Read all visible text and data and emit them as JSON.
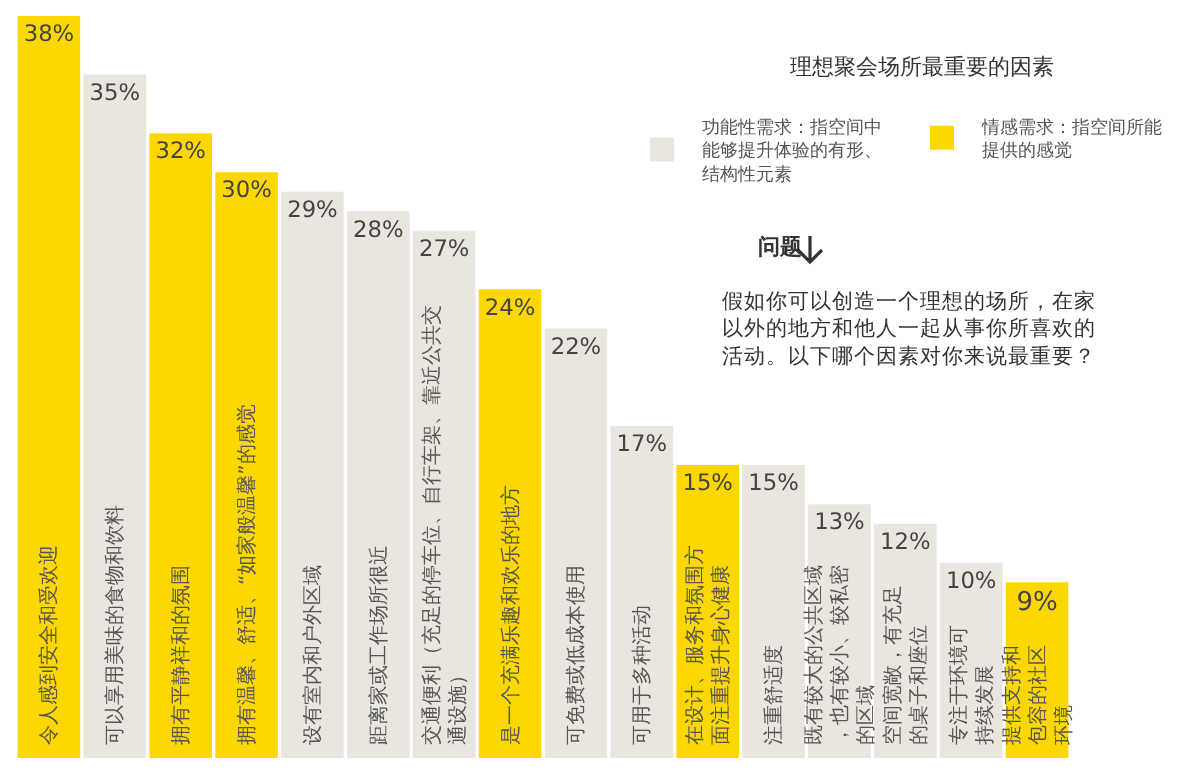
{
  "chart_data": {
    "type": "bar",
    "title": "理想聚会场所最重要的因素",
    "categories": [
      "令人感到安全和受欢迎",
      "可以享用美味的食物和饮料",
      "拥有平静祥和的氛围",
      "拥有温馨、舒适、“如家般温馨”的感觉",
      "设有室内和户外区域",
      "距离家或工作场所很近",
      "交通便利（充足的停车位、自行车架、靠近公共交通设施）",
      "是一个充满乐趣和欢乐的地方",
      "可免费或低成本使用",
      "可用于多种活动",
      "在设计、服务和氛围方面注重提升身心健康",
      "注重舒适度",
      "既有较大的公共区域，也有较小、较私密的区域",
      "空间宽敞，有充足的桌子和座位",
      "专注于环境可持续发展",
      "提供支持和包容的社区环境"
    ],
    "series": [
      {
        "name": "功能性需求：指空间中能够提升体验的有形、结构性元素",
        "color": "#e9e6df",
        "values": [
          null,
          35,
          null,
          null,
          29,
          28,
          27,
          null,
          22,
          17,
          null,
          15,
          13,
          12,
          10,
          null
        ],
        "value_labels": [
          null,
          "35%",
          null,
          null,
          "29%",
          "28%",
          "27%",
          null,
          "22%",
          "17%",
          null,
          "15%",
          "13%",
          "12%",
          "10%",
          null
        ]
      },
      {
        "name": "情感需求：指空间所能提供的感觉",
        "color": "#fcd800",
        "values": [
          38,
          null,
          32,
          30,
          null,
          null,
          null,
          24,
          null,
          null,
          15,
          null,
          null,
          null,
          null,
          9
        ],
        "value_labels": [
          "38%",
          null,
          "32%",
          "30%",
          null,
          null,
          null,
          "24%",
          null,
          null,
          "15%",
          null,
          null,
          null,
          null,
          "9%"
        ]
      }
    ],
    "ylim": [
      0,
      38
    ],
    "tick_labels": "x",
    "grid": false,
    "legend": "top right",
    "annotations": [
      "问题",
      "假如你可以创造一个理想的场所，在家以外的地方和他人一起从事你所喜欢的活动。以下哪个因素对你来说最重要？"
    ]
  }
}
